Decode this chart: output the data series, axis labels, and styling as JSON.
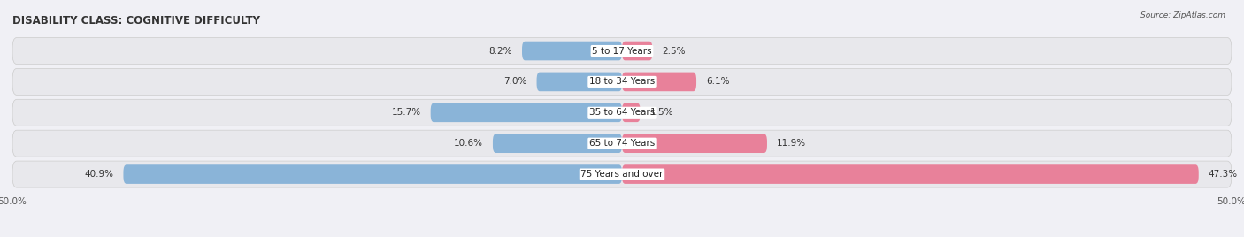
{
  "title": "DISABILITY CLASS: COGNITIVE DIFFICULTY",
  "source": "Source: ZipAtlas.com",
  "categories": [
    "5 to 17 Years",
    "18 to 34 Years",
    "35 to 64 Years",
    "65 to 74 Years",
    "75 Years and over"
  ],
  "male_values": [
    8.2,
    7.0,
    15.7,
    10.6,
    40.9
  ],
  "female_values": [
    2.5,
    6.1,
    1.5,
    11.9,
    47.3
  ],
  "male_color": "#8ab4d8",
  "female_color": "#e8819a",
  "row_bg_color": "#e8e8ec",
  "bg_color": "#f0f0f5",
  "max_val": 50.0,
  "title_fontsize": 8.5,
  "label_fontsize": 7.5,
  "tick_fontsize": 7.5,
  "category_fontsize": 7.5
}
